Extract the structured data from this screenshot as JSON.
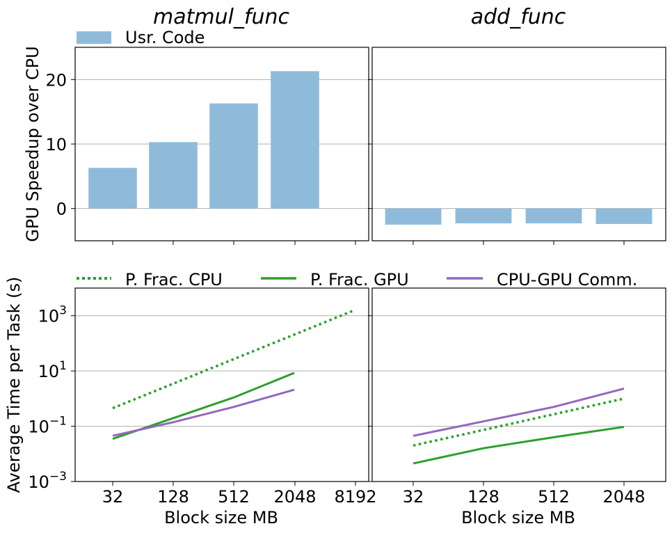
{
  "chart_data": [
    {
      "type": "bar",
      "title": "matmul_func",
      "ylabel": "GPU Speedup over CPU",
      "ylim": [
        -5,
        25
      ],
      "yticks": [
        0,
        10,
        20
      ],
      "grid": "y",
      "legend_position": "top-left",
      "categories": [
        "32",
        "128",
        "512",
        "2048"
      ],
      "series": [
        {
          "name": "Usr. Code",
          "values": [
            6.3,
            10.3,
            16.3,
            21.3
          ]
        }
      ],
      "colors": {
        "bar": "#8fbbdb"
      }
    },
    {
      "type": "bar",
      "title": "add_func",
      "ylim": [
        -5,
        25
      ],
      "grid": "y",
      "categories": [
        "32",
        "128",
        "512",
        "2048"
      ],
      "series": [
        {
          "name": "Usr. Code",
          "values": [
            -2.5,
            -2.3,
            -2.3,
            -2.4
          ]
        }
      ],
      "colors": {
        "bar": "#8fbbdb"
      }
    },
    {
      "type": "line",
      "ylabel": "Average Time per Task (s)",
      "xlabel": "Block size MB",
      "x_scale": "log2",
      "y_scale": "log",
      "ylim": [
        0.001,
        10000
      ],
      "xticks": [
        "32",
        "128",
        "512",
        "2048",
        "8192"
      ],
      "yticks": [
        {
          "base": "10",
          "exp": "3",
          "value": 1000
        },
        {
          "base": "10",
          "exp": "1",
          "value": 10
        },
        {
          "base": "10",
          "exp": "−1",
          "value": 0.1
        },
        {
          "base": "10",
          "exp": "−3",
          "value": 0.001
        }
      ],
      "grid": "y",
      "legend_position": "top",
      "series": [
        {
          "name": "P. Frac. CPU",
          "style": "dotted",
          "color": "#2ca02c",
          "x": [
            32,
            8192
          ],
          "y": [
            0.45,
            1600
          ]
        },
        {
          "name": "P. Frac. GPU",
          "style": "solid",
          "color": "#2ca02c",
          "x": [
            32,
            512,
            2048
          ],
          "y": [
            0.035,
            1.1,
            8.5
          ]
        },
        {
          "name": "CPU-GPU Comm.",
          "style": "solid",
          "color": "#9467bd",
          "x": [
            32,
            128,
            512,
            2048
          ],
          "y": [
            0.045,
            0.14,
            0.5,
            2.1
          ]
        }
      ]
    },
    {
      "type": "line",
      "xlabel": "Block size MB",
      "x_scale": "log2",
      "y_scale": "log",
      "ylim": [
        0.001,
        10000
      ],
      "xticks": [
        "32",
        "128",
        "512",
        "2048"
      ],
      "grid": "y",
      "series": [
        {
          "name": "P. Frac. CPU",
          "style": "dotted",
          "color": "#2ca02c",
          "x": [
            32,
            2048
          ],
          "y": [
            0.02,
            1.0
          ]
        },
        {
          "name": "P. Frac. GPU",
          "style": "solid",
          "color": "#2ca02c",
          "x": [
            32,
            128,
            512,
            2048
          ],
          "y": [
            0.0045,
            0.016,
            0.04,
            0.095
          ]
        },
        {
          "name": "CPU-GPU Comm.",
          "style": "solid",
          "color": "#9467bd",
          "x": [
            32,
            128,
            512,
            2048
          ],
          "y": [
            0.045,
            0.15,
            0.5,
            2.3
          ]
        }
      ]
    }
  ]
}
